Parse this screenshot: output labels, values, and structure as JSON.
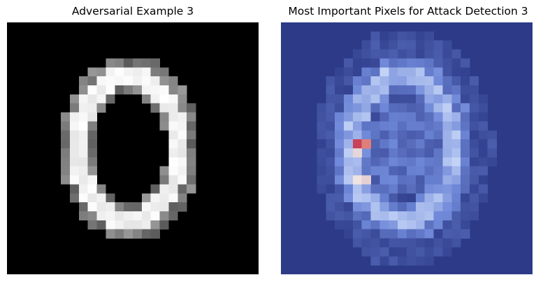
{
  "panels": [
    {
      "title": "Adversarial Example 3",
      "image": "grayscale handwritten digit 0 (pixelated)"
    },
    {
      "title": "Most Important Pixels for Attack Detection 3",
      "image": "attribution heatmap overlay"
    }
  ],
  "colors": {
    "digit_background": "#000000",
    "digit_stroke": "#ffffff",
    "heatmap_background": "#2c3a88",
    "heatmap_mid": "#6f88d8",
    "heatmap_high": "#b9ccf6",
    "heatmap_hot": "#d24a55"
  }
}
